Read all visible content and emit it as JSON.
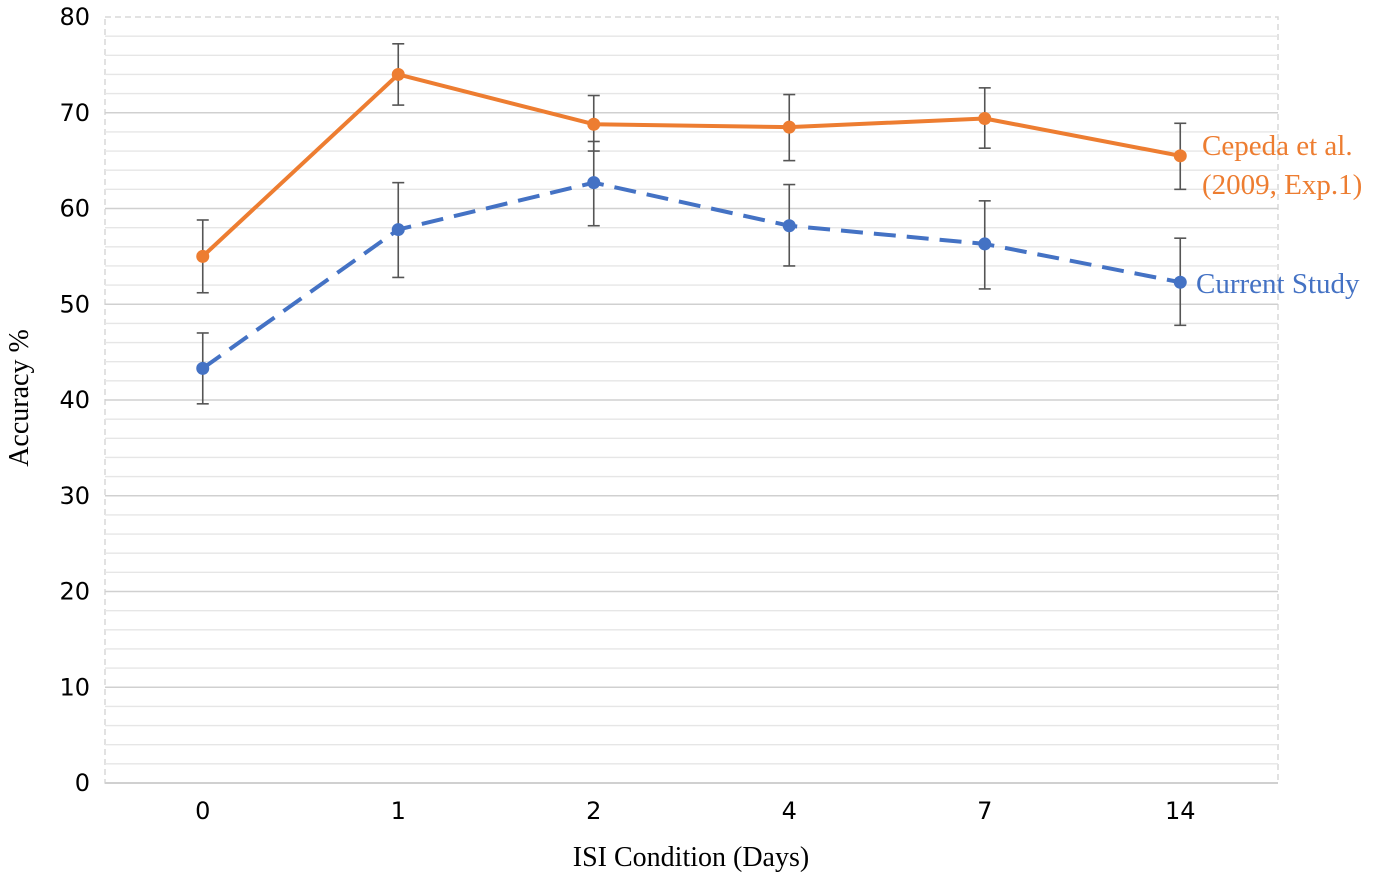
{
  "chart_data": {
    "type": "line",
    "title": "",
    "xlabel": "ISI Condition (Days)",
    "ylabel": "Accuracy %",
    "categories": [
      "0",
      "1",
      "2",
      "4",
      "7",
      "14"
    ],
    "ylim": [
      0,
      80
    ],
    "yticks": [
      "0",
      "10",
      "20",
      "30",
      "40",
      "50",
      "60",
      "70",
      "80"
    ],
    "grid": true,
    "legend": "inline labels at right end of lines",
    "series": [
      {
        "name": "Cepeda et al. (2009, Exp.1)",
        "label_lines": [
          "Cepeda et al.",
          "(2009, Exp.1)"
        ],
        "color": "#ED7D31",
        "line_style": "solid",
        "values": [
          55.0,
          74.0,
          68.8,
          68.5,
          69.4,
          65.5
        ],
        "err_low": [
          51.2,
          70.8,
          66.0,
          65.0,
          66.3,
          62.0
        ],
        "err_high": [
          58.8,
          77.2,
          71.8,
          71.9,
          72.6,
          68.9
        ]
      },
      {
        "name": "Current Study",
        "label_lines": [
          "Current Study"
        ],
        "color": "#4472C4",
        "line_style": "dashed",
        "values": [
          43.3,
          57.8,
          62.7,
          58.2,
          56.3,
          52.3
        ],
        "err_low": [
          39.6,
          52.8,
          58.2,
          54.0,
          51.6,
          47.8
        ],
        "err_high": [
          47.0,
          62.7,
          67.0,
          62.5,
          60.8,
          56.9
        ]
      }
    ]
  }
}
